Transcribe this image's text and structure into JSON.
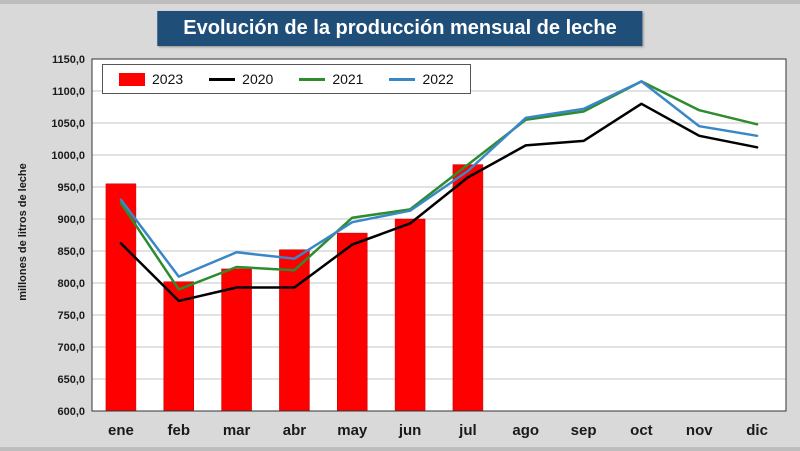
{
  "title": "Evolución de la producción mensual de leche",
  "chart_data": {
    "type": "bar+line",
    "title": "Evolución de la producción mensual de leche",
    "ylabel": "millones de litros de leche",
    "xlabel": "",
    "ylim": [
      600,
      1150
    ],
    "ytick_step": 50,
    "ytick_labels": [
      "600,0",
      "650,0",
      "700,0",
      "750,0",
      "800,0",
      "850,0",
      "900,0",
      "950,0",
      "1000,0",
      "1050,0",
      "1100,0",
      "1150,0"
    ],
    "grid": true,
    "legend_position": "top-left",
    "categories": [
      "ene",
      "feb",
      "mar",
      "abr",
      "may",
      "jun",
      "jul",
      "ago",
      "sep",
      "oct",
      "nov",
      "dic"
    ],
    "bar_series": {
      "name": "2023",
      "color": "#fe0000",
      "values": [
        955,
        802,
        822,
        852,
        878,
        900,
        985
      ]
    },
    "line_series": [
      {
        "name": "2020",
        "color": "#000000",
        "values": [
          862,
          772,
          793,
          793,
          860,
          893,
          965,
          1015,
          1022,
          1080,
          1030,
          1012
        ]
      },
      {
        "name": "2021",
        "color": "#2e8b2e",
        "values": [
          925,
          790,
          825,
          820,
          902,
          915,
          985,
          1055,
          1068,
          1115,
          1070,
          1048
        ]
      },
      {
        "name": "2022",
        "color": "#3a87c8",
        "values": [
          930,
          810,
          848,
          838,
          895,
          913,
          975,
          1058,
          1072,
          1115,
          1045,
          1030
        ]
      }
    ]
  }
}
